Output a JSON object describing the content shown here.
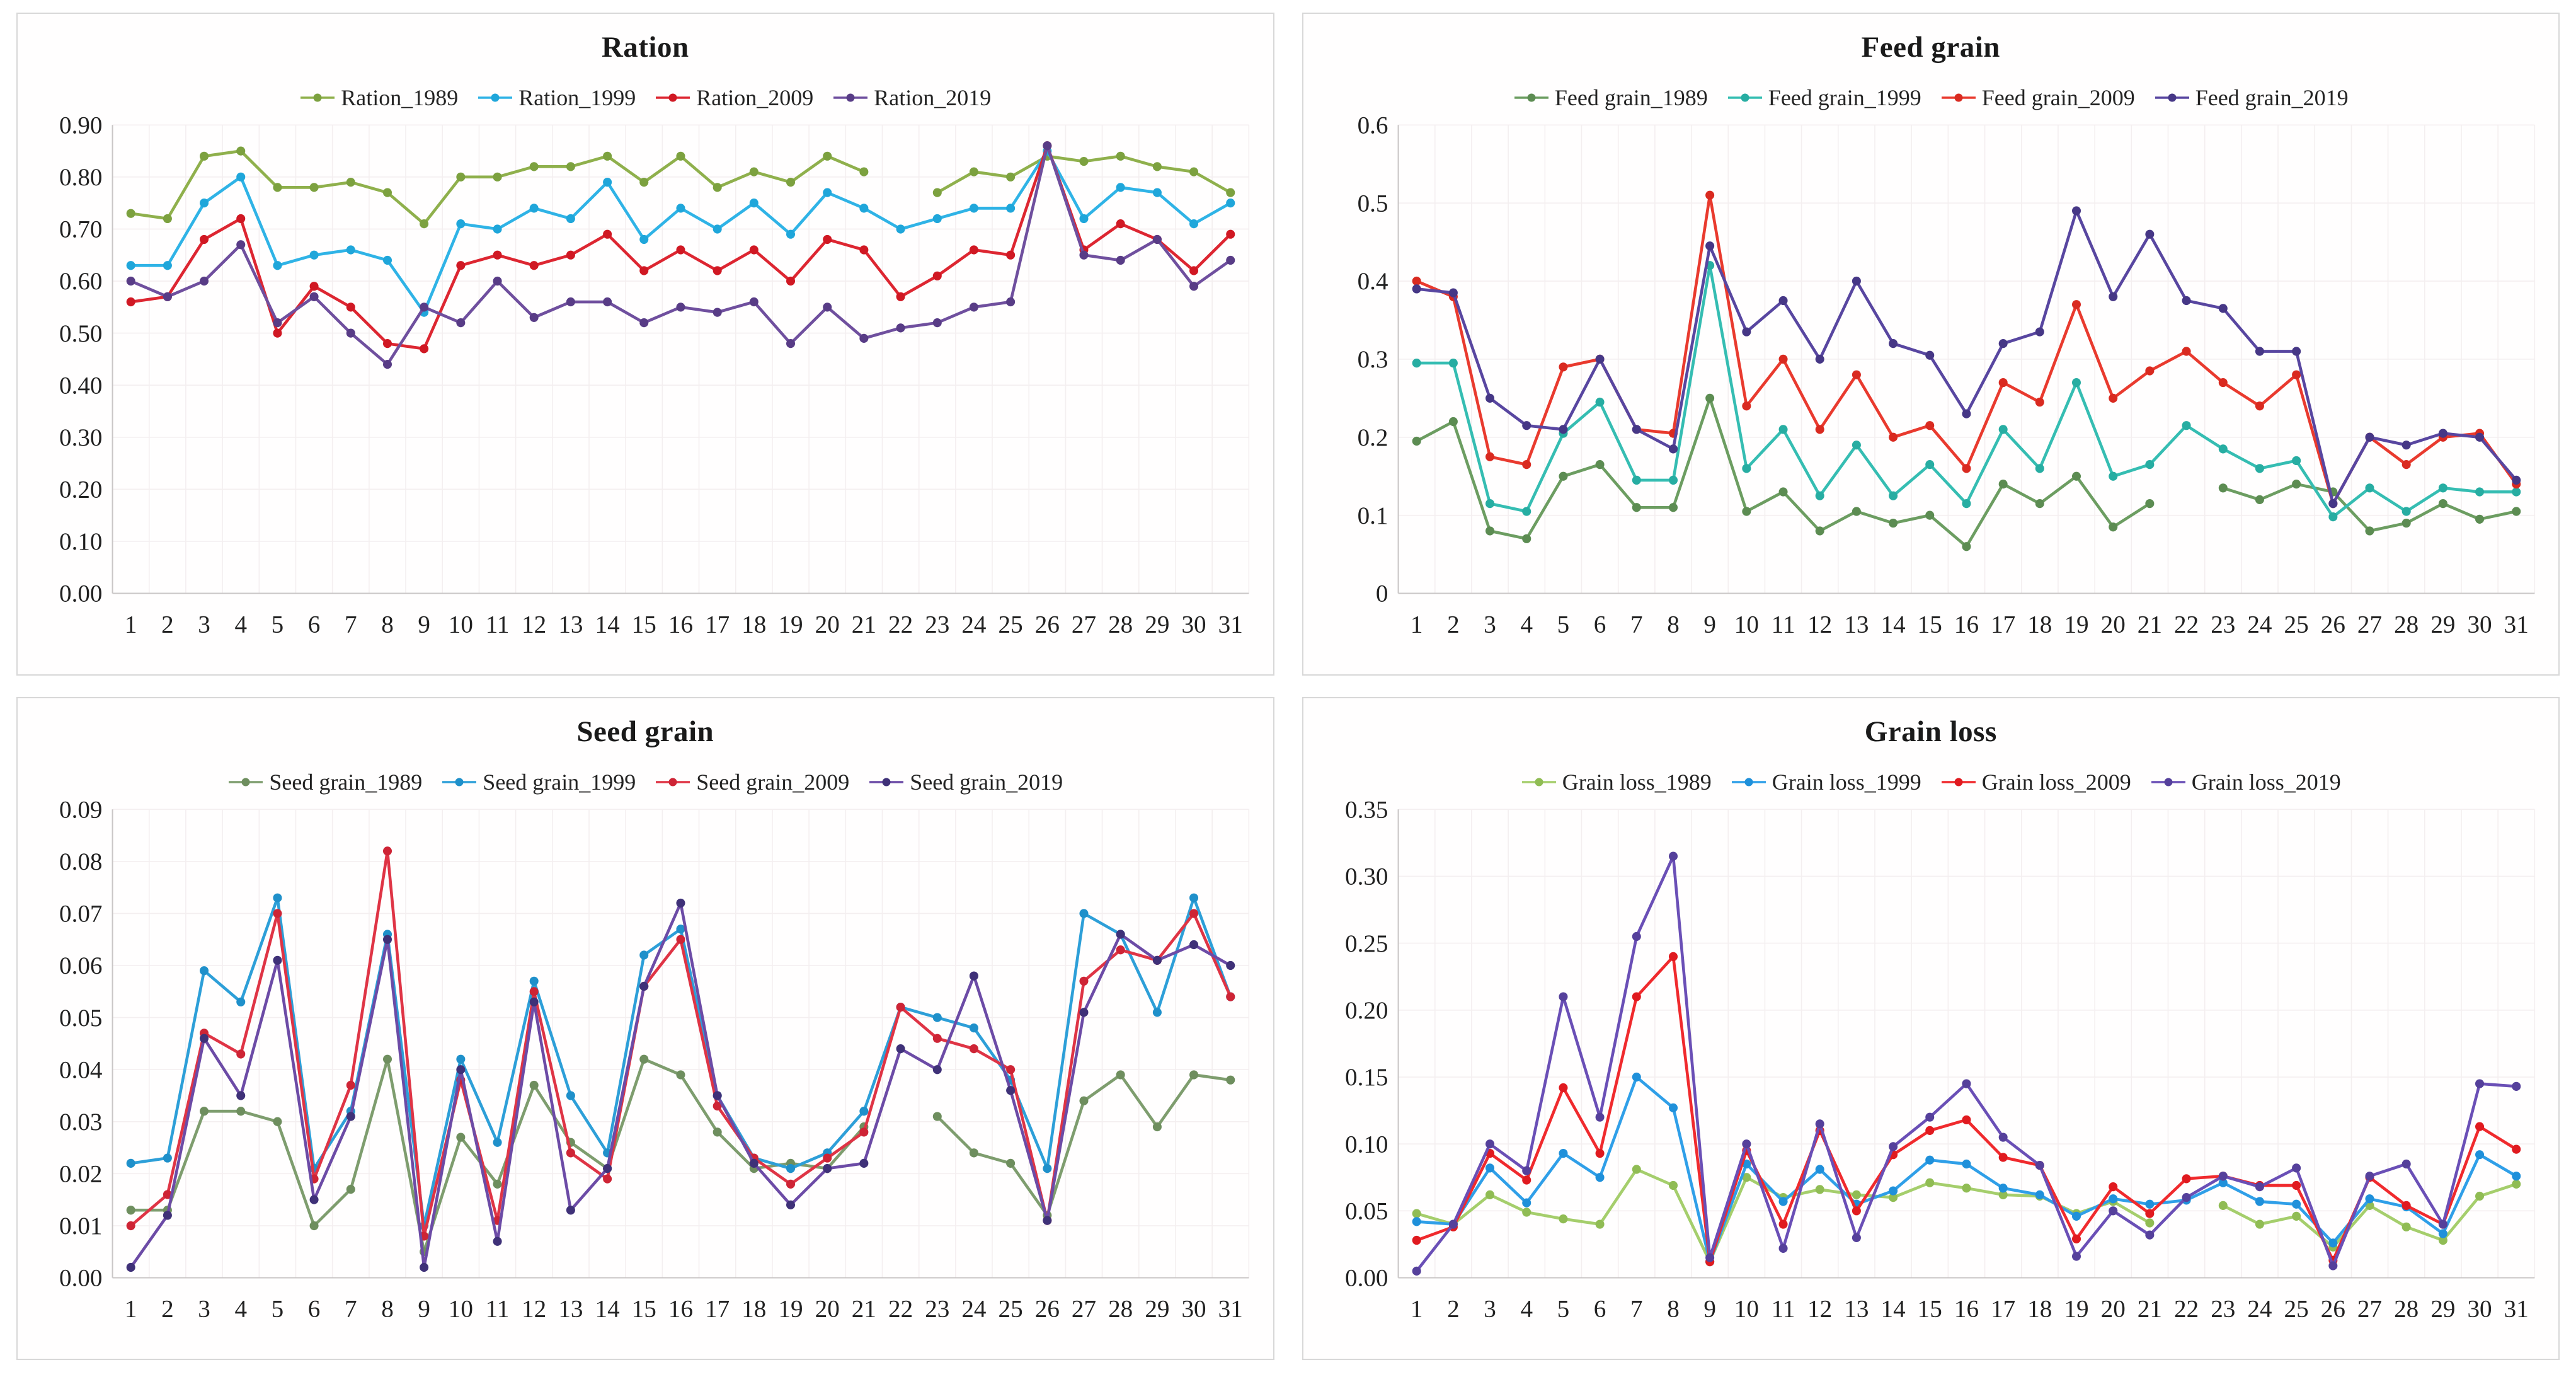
{
  "page": {
    "background": "#ffffff",
    "panel_border": "#d8d8d8",
    "grid_color": "#f4eff0",
    "axis_color": "#c9c6c6"
  },
  "chart_data": [
    {
      "type": "line",
      "title": "Ration",
      "legend_position": "top",
      "grid": true,
      "x_categories": [
        "1",
        "2",
        "3",
        "4",
        "5",
        "6",
        "7",
        "8",
        "9",
        "10",
        "11",
        "12",
        "13",
        "14",
        "15",
        "16",
        "17",
        "18",
        "19",
        "20",
        "21",
        "22",
        "23",
        "24",
        "25",
        "26",
        "27",
        "28",
        "29",
        "30",
        "31"
      ],
      "y_axis": {
        "min": 0,
        "max": 0.9,
        "step": 0.1,
        "tick_labels": [
          "0.90",
          "0.80",
          "0.70",
          "0.60",
          "0.50",
          "0.40",
          "0.30",
          "0.20",
          "0.10",
          "0.00"
        ]
      },
      "series": [
        {
          "name": "Ration_1989",
          "color": "#8fb04c",
          "marker_color": "#7ca13f",
          "values": [
            0.73,
            0.72,
            0.84,
            0.85,
            0.78,
            0.78,
            0.79,
            0.77,
            0.71,
            0.8,
            0.8,
            0.82,
            0.82,
            0.84,
            0.79,
            0.84,
            0.78,
            0.81,
            0.79,
            0.84,
            0.81,
            null,
            0.77,
            0.81,
            0.8,
            0.84,
            0.83,
            0.84,
            0.82,
            0.81,
            0.77
          ]
        },
        {
          "name": "Ration_1999",
          "color": "#2fb3e6",
          "marker_color": "#1fa6da",
          "values": [
            0.63,
            0.63,
            0.75,
            0.8,
            0.63,
            0.65,
            0.66,
            0.64,
            0.54,
            0.71,
            0.7,
            0.74,
            0.72,
            0.79,
            0.68,
            0.74,
            0.7,
            0.75,
            0.69,
            0.77,
            0.74,
            0.7,
            0.72,
            0.74,
            0.74,
            0.85,
            0.72,
            0.78,
            0.77,
            0.71,
            0.75
          ]
        },
        {
          "name": "Ration_2009",
          "color": "#dd2631",
          "marker_color": "#d01823",
          "values": [
            0.56,
            0.57,
            0.68,
            0.72,
            0.5,
            0.59,
            0.55,
            0.48,
            0.47,
            0.63,
            0.65,
            0.63,
            0.65,
            0.69,
            0.62,
            0.66,
            0.62,
            0.66,
            0.6,
            0.68,
            0.66,
            0.57,
            0.61,
            0.66,
            0.65,
            0.86,
            0.66,
            0.71,
            0.68,
            0.62,
            0.69
          ]
        },
        {
          "name": "Ration_2019",
          "color": "#6f4f9e",
          "marker_color": "#583c86",
          "values": [
            0.6,
            0.57,
            0.6,
            0.67,
            0.52,
            0.57,
            0.5,
            0.44,
            0.55,
            0.52,
            0.6,
            0.53,
            0.56,
            0.56,
            0.52,
            0.55,
            0.54,
            0.56,
            0.48,
            0.55,
            0.49,
            0.51,
            0.52,
            0.55,
            0.56,
            0.86,
            0.65,
            0.64,
            0.68,
            0.59,
            0.64
          ]
        }
      ]
    },
    {
      "type": "line",
      "title": "Feed grain",
      "legend_position": "top",
      "grid": true,
      "x_categories": [
        "1",
        "2",
        "3",
        "4",
        "5",
        "6",
        "7",
        "8",
        "9",
        "10",
        "11",
        "12",
        "13",
        "14",
        "15",
        "16",
        "17",
        "18",
        "19",
        "20",
        "21",
        "22",
        "23",
        "24",
        "25",
        "26",
        "27",
        "28",
        "29",
        "30",
        "31"
      ],
      "y_axis": {
        "min": 0,
        "max": 0.6,
        "step": 0.1,
        "tick_labels": [
          "0.6",
          "0.5",
          "0.4",
          "0.3",
          "0.2",
          "0.1",
          "0"
        ]
      },
      "series": [
        {
          "name": "Feed grain_1989",
          "color": "#6c9d61",
          "marker_color": "#5c8c52",
          "values": [
            0.195,
            0.22,
            0.08,
            0.07,
            0.15,
            0.165,
            0.11,
            0.11,
            0.25,
            0.105,
            0.13,
            0.08,
            0.105,
            0.09,
            0.1,
            0.06,
            0.14,
            0.115,
            0.15,
            0.085,
            0.115,
            null,
            0.135,
            0.12,
            0.14,
            0.13,
            0.08,
            0.09,
            0.115,
            0.095,
            0.105
          ]
        },
        {
          "name": "Feed grain_1999",
          "color": "#35bdb2",
          "marker_color": "#27ada2",
          "values": [
            0.295,
            0.295,
            0.115,
            0.105,
            0.205,
            0.245,
            0.145,
            0.145,
            0.42,
            0.16,
            0.21,
            0.125,
            0.19,
            0.125,
            0.165,
            0.115,
            0.21,
            0.16,
            0.27,
            0.15,
            0.165,
            0.215,
            0.185,
            0.16,
            0.17,
            0.098,
            0.135,
            0.105,
            0.135,
            0.13,
            0.13
          ]
        },
        {
          "name": "Feed grain_2009",
          "color": "#e93a2e",
          "marker_color": "#d92a20",
          "values": [
            0.4,
            0.38,
            0.175,
            0.165,
            0.29,
            0.3,
            0.21,
            0.205,
            0.51,
            0.24,
            0.3,
            0.21,
            0.28,
            0.2,
            0.215,
            0.16,
            0.27,
            0.245,
            0.37,
            0.25,
            0.285,
            0.31,
            0.27,
            0.24,
            0.28,
            0.115,
            0.2,
            0.165,
            0.2,
            0.205,
            0.14
          ]
        },
        {
          "name": "Feed grain_2019",
          "color": "#5846a0",
          "marker_color": "#463786",
          "values": [
            0.39,
            0.385,
            0.25,
            0.215,
            0.21,
            0.3,
            0.21,
            0.185,
            0.445,
            0.335,
            0.375,
            0.3,
            0.4,
            0.32,
            0.305,
            0.23,
            0.32,
            0.335,
            0.49,
            0.38,
            0.46,
            0.375,
            0.365,
            0.31,
            0.31,
            0.115,
            0.2,
            0.19,
            0.205,
            0.2,
            0.145
          ]
        }
      ]
    },
    {
      "type": "line",
      "title": "Seed grain",
      "legend_position": "top",
      "grid": true,
      "x_categories": [
        "1",
        "2",
        "3",
        "4",
        "5",
        "6",
        "7",
        "8",
        "9",
        "10",
        "11",
        "12",
        "13",
        "14",
        "15",
        "16",
        "17",
        "18",
        "19",
        "20",
        "21",
        "22",
        "23",
        "24",
        "25",
        "26",
        "27",
        "28",
        "29",
        "30",
        "31"
      ],
      "y_axis": {
        "min": 0,
        "max": 0.09,
        "step": 0.01,
        "tick_labels": [
          "0.09",
          "0.08",
          "0.07",
          "0.06",
          "0.05",
          "0.04",
          "0.03",
          "0.02",
          "0.01",
          "0.00"
        ]
      },
      "series": [
        {
          "name": "Seed grain_1989",
          "color": "#7e9d6e",
          "marker_color": "#6e8e5e",
          "values": [
            0.013,
            0.013,
            0.032,
            0.032,
            0.03,
            0.01,
            0.017,
            0.042,
            0.005,
            0.027,
            0.018,
            0.037,
            0.026,
            0.021,
            0.042,
            0.039,
            0.028,
            0.021,
            0.022,
            0.021,
            0.029,
            null,
            0.031,
            0.024,
            0.022,
            0.012,
            0.034,
            0.039,
            0.029,
            0.039,
            0.038
          ]
        },
        {
          "name": "Seed grain_1999",
          "color": "#2d9fd8",
          "marker_color": "#1f90ca",
          "values": [
            0.022,
            0.023,
            0.059,
            0.053,
            0.073,
            0.021,
            0.032,
            0.066,
            0.01,
            0.042,
            0.026,
            0.057,
            0.035,
            0.024,
            0.062,
            0.067,
            0.035,
            0.023,
            0.021,
            0.024,
            0.032,
            0.052,
            0.05,
            0.048,
            0.038,
            0.021,
            0.07,
            0.066,
            0.051,
            0.073,
            0.054
          ]
        },
        {
          "name": "Seed grain_2009",
          "color": "#df3445",
          "marker_color": "#ce2435",
          "values": [
            0.01,
            0.016,
            0.047,
            0.043,
            0.07,
            0.019,
            0.037,
            0.082,
            0.008,
            0.038,
            0.011,
            0.055,
            0.024,
            0.019,
            0.056,
            0.065,
            0.033,
            0.023,
            0.018,
            0.023,
            0.028,
            0.052,
            0.046,
            0.044,
            0.04,
            0.011,
            0.057,
            0.063,
            0.061,
            0.07,
            0.054
          ]
        },
        {
          "name": "Seed grain_2019",
          "color": "#6c4ba6",
          "marker_color": "#3f3178",
          "values": [
            0.002,
            0.012,
            0.046,
            0.035,
            0.061,
            0.015,
            0.031,
            0.065,
            0.002,
            0.04,
            0.007,
            0.053,
            0.013,
            0.021,
            0.056,
            0.072,
            0.035,
            0.022,
            0.014,
            0.021,
            0.022,
            0.044,
            0.04,
            0.058,
            0.036,
            0.011,
            0.051,
            0.066,
            0.061,
            0.064,
            0.06
          ]
        }
      ]
    },
    {
      "type": "line",
      "title": "Grain loss",
      "legend_position": "top",
      "grid": true,
      "x_categories": [
        "1",
        "2",
        "3",
        "4",
        "5",
        "6",
        "7",
        "8",
        "9",
        "10",
        "11",
        "12",
        "13",
        "14",
        "15",
        "16",
        "17",
        "18",
        "19",
        "20",
        "21",
        "22",
        "23",
        "24",
        "25",
        "26",
        "27",
        "28",
        "29",
        "30",
        "31"
      ],
      "y_axis": {
        "min": 0,
        "max": 0.35,
        "step": 0.05,
        "tick_labels": [
          "0.35",
          "0.30",
          "0.25",
          "0.20",
          "0.15",
          "0.10",
          "0.05",
          "0.00"
        ]
      },
      "series": [
        {
          "name": "Grain loss_1989",
          "color": "#a5ce6c",
          "marker_color": "#90bc54",
          "values": [
            0.048,
            0.04,
            0.062,
            0.049,
            0.044,
            0.04,
            0.081,
            0.069,
            0.012,
            0.075,
            0.06,
            0.066,
            0.062,
            0.06,
            0.071,
            0.067,
            0.062,
            0.061,
            0.048,
            0.057,
            0.041,
            null,
            0.054,
            0.04,
            0.046,
            0.023,
            0.054,
            0.038,
            0.028,
            0.061,
            0.07
          ]
        },
        {
          "name": "Grain loss_1999",
          "color": "#2f9fe8",
          "marker_color": "#1f90da",
          "values": [
            0.042,
            0.04,
            0.082,
            0.056,
            0.093,
            0.075,
            0.15,
            0.127,
            0.012,
            0.085,
            0.057,
            0.081,
            0.055,
            0.065,
            0.088,
            0.085,
            0.067,
            0.062,
            0.046,
            0.059,
            0.055,
            0.058,
            0.071,
            0.057,
            0.055,
            0.026,
            0.059,
            0.053,
            0.033,
            0.092,
            0.076
          ]
        },
        {
          "name": "Grain loss_2009",
          "color": "#f02a2d",
          "marker_color": "#e01a1f",
          "values": [
            0.028,
            0.038,
            0.093,
            0.073,
            0.142,
            0.093,
            0.21,
            0.24,
            0.012,
            0.095,
            0.04,
            0.11,
            0.05,
            0.092,
            0.11,
            0.118,
            0.09,
            0.084,
            0.029,
            0.068,
            0.048,
            0.074,
            0.076,
            0.069,
            0.069,
            0.013,
            0.075,
            0.054,
            0.04,
            0.113,
            0.096
          ]
        },
        {
          "name": "Grain loss_2019",
          "color": "#6a4fb6",
          "marker_color": "#55409b",
          "values": [
            0.005,
            0.04,
            0.1,
            0.08,
            0.21,
            0.12,
            0.255,
            0.315,
            0.015,
            0.1,
            0.022,
            0.115,
            0.03,
            0.098,
            0.12,
            0.145,
            0.105,
            0.084,
            0.016,
            0.05,
            0.032,
            0.06,
            0.076,
            0.068,
            0.082,
            0.009,
            0.076,
            0.085,
            0.04,
            0.145,
            0.143
          ]
        }
      ]
    }
  ]
}
